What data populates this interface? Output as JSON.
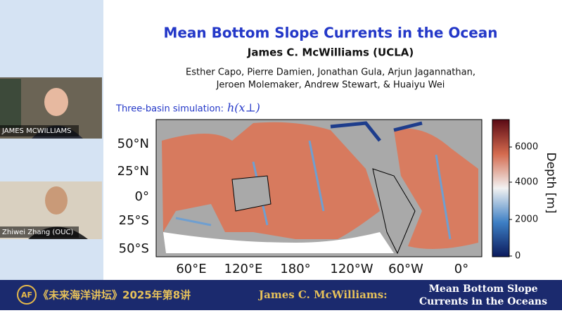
{
  "participants": [
    {
      "name": "JAMES MCWILLIAMS"
    },
    {
      "name": "Zhiwei Zhang (OUC)"
    }
  ],
  "slide": {
    "title": "Mean Bottom Slope Currents in the Ocean",
    "author": "James C. McWilliams (UCLA)",
    "coauthors": [
      "Esther Capo, Pierre Damien, Jonathan Gula, Arjun Jagannathan,",
      "Jeroen Molemaker, Andrew Stewart, & Huaiyu Wei"
    ],
    "figure_label": "Three-basin simulation:",
    "figure_formula": "h(x⊥)",
    "map": {
      "lat_labels": [
        "50°N",
        "25°N",
        "0°",
        "25°S",
        "50°S"
      ],
      "lon_labels": [
        "60°E",
        "120°E",
        "180°",
        "120°W",
        "60°W",
        "0°"
      ],
      "colorbar": {
        "label": "Depth [m]",
        "ticks": [
          0,
          2000,
          4000,
          6000
        ]
      }
    }
  },
  "banner": {
    "logo": "AF",
    "series": "《未来海洋讲坛》2025年第8讲",
    "speaker": "James C. McWilliams:",
    "talk_title": [
      "Mean Bottom Slope",
      "Currents in the Oceans"
    ]
  }
}
